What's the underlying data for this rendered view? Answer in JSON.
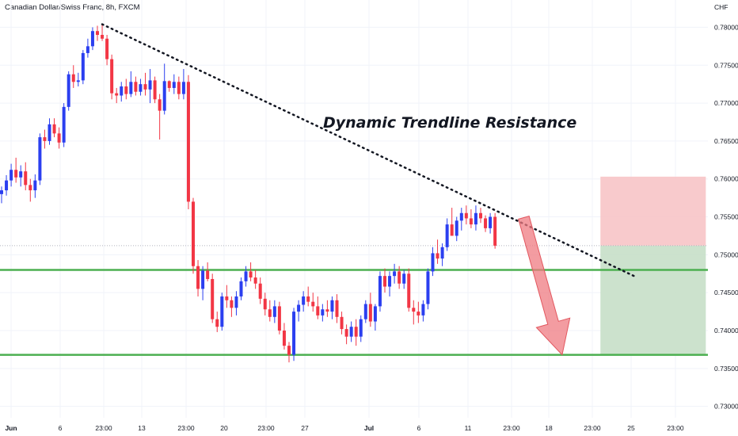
{
  "title": "Canadian Dollar/Swiss Franc, 8h, FXCM",
  "currency": "CHF",
  "annotation": "Dynamic Trendline Resistance",
  "colors": {
    "bull": "#2b3ff0",
    "bear": "#f23645",
    "support": "#4caf50",
    "stop_zone": "#f7c4c6",
    "target_zone": "#c6dfc8",
    "arrow": "#ef7b82"
  },
  "chart_data": {
    "type": "candlestick",
    "x_tick_labels": [
      "Jun",
      "6",
      "23:00",
      "13",
      "23:00",
      "20",
      "23:00",
      "27",
      "Jul",
      "6",
      "11",
      "23:00",
      "18",
      "23:00",
      "25",
      "23:00"
    ],
    "y_tick_labels": [
      "0.78000",
      "0.77500",
      "0.77000",
      "0.76500",
      "0.76000",
      "0.75500",
      "0.75000",
      "0.74500",
      "0.74000",
      "0.73500",
      "0.73000"
    ],
    "ylim": [
      0.7285,
      0.7836
    ],
    "support_levels": [
      0.748,
      0.7368
    ],
    "trendline": {
      "start": {
        "bar": 21,
        "price": 0.7804
      },
      "end": {
        "bar": 132,
        "price": 0.7472
      }
    },
    "position": {
      "entry": 0.7512,
      "stop": 0.7603,
      "target": 0.7368,
      "start_bar": 125,
      "end_bar": 147
    },
    "projection_arrow": {
      "from": {
        "bar": 109,
        "price": 0.7549
      },
      "to": {
        "bar": 117,
        "price": 0.7368
      }
    },
    "candles": [
      [
        0.758,
        0.759,
        0.7568,
        0.7585
      ],
      [
        0.7585,
        0.7605,
        0.7578,
        0.7598
      ],
      [
        0.7598,
        0.762,
        0.759,
        0.7612
      ],
      [
        0.7612,
        0.7628,
        0.7595,
        0.7602
      ],
      [
        0.7602,
        0.7618,
        0.759,
        0.761
      ],
      [
        0.761,
        0.7622,
        0.7585,
        0.7592
      ],
      [
        0.7592,
        0.76,
        0.757,
        0.7585
      ],
      [
        0.7585,
        0.7606,
        0.7575,
        0.7598
      ],
      [
        0.7598,
        0.766,
        0.7592,
        0.7655
      ],
      [
        0.7655,
        0.7665,
        0.764,
        0.765
      ],
      [
        0.765,
        0.768,
        0.7645,
        0.7672
      ],
      [
        0.7672,
        0.768,
        0.7655,
        0.766
      ],
      [
        0.766,
        0.7668,
        0.764,
        0.7648
      ],
      [
        0.7648,
        0.77,
        0.7642,
        0.7695
      ],
      [
        0.7695,
        0.7742,
        0.769,
        0.7738
      ],
      [
        0.7738,
        0.775,
        0.772,
        0.7728
      ],
      [
        0.7728,
        0.774,
        0.7722,
        0.773
      ],
      [
        0.773,
        0.777,
        0.7725,
        0.7766
      ],
      [
        0.7766,
        0.7785,
        0.776,
        0.7775
      ],
      [
        0.7775,
        0.78,
        0.777,
        0.7795
      ],
      [
        0.7795,
        0.7802,
        0.7782,
        0.779
      ],
      [
        0.779,
        0.7805,
        0.7782,
        0.7785
      ],
      [
        0.7785,
        0.779,
        0.775,
        0.7758
      ],
      [
        0.7758,
        0.7764,
        0.7705,
        0.7713
      ],
      [
        0.7713,
        0.772,
        0.77,
        0.771
      ],
      [
        0.771,
        0.7728,
        0.7702,
        0.7722
      ],
      [
        0.7722,
        0.7732,
        0.7705,
        0.7712
      ],
      [
        0.7712,
        0.7742,
        0.7708,
        0.7728
      ],
      [
        0.7728,
        0.7735,
        0.771,
        0.7715
      ],
      [
        0.7715,
        0.7732,
        0.771,
        0.7725
      ],
      [
        0.7725,
        0.774,
        0.771,
        0.7718
      ],
      [
        0.7718,
        0.7745,
        0.77,
        0.773
      ],
      [
        0.773,
        0.7735,
        0.77,
        0.7705
      ],
      [
        0.7705,
        0.7712,
        0.7652,
        0.769
      ],
      [
        0.769,
        0.7752,
        0.7685,
        0.7729
      ],
      [
        0.7729,
        0.773,
        0.7715,
        0.772
      ],
      [
        0.772,
        0.7738,
        0.7712,
        0.7728
      ],
      [
        0.7728,
        0.7735,
        0.7705,
        0.7712
      ],
      [
        0.7712,
        0.7745,
        0.7705,
        0.7728
      ],
      [
        0.7728,
        0.7737,
        0.756,
        0.757
      ],
      [
        0.757,
        0.7575,
        0.7475,
        0.7485
      ],
      [
        0.7485,
        0.7493,
        0.7445,
        0.7455
      ],
      [
        0.7455,
        0.7485,
        0.744,
        0.7479
      ],
      [
        0.7479,
        0.749,
        0.7465,
        0.7468
      ],
      [
        0.7468,
        0.7475,
        0.741,
        0.7415
      ],
      [
        0.7415,
        0.7425,
        0.7398,
        0.7405
      ],
      [
        0.7405,
        0.745,
        0.74,
        0.7445
      ],
      [
        0.7445,
        0.746,
        0.743,
        0.744
      ],
      [
        0.744,
        0.7445,
        0.7418,
        0.743
      ],
      [
        0.743,
        0.7452,
        0.742,
        0.7445
      ],
      [
        0.7445,
        0.747,
        0.744,
        0.7465
      ],
      [
        0.7465,
        0.7485,
        0.7458,
        0.7478
      ],
      [
        0.7478,
        0.749,
        0.7465,
        0.747
      ],
      [
        0.747,
        0.748,
        0.7455,
        0.7462
      ],
      [
        0.7462,
        0.747,
        0.7435,
        0.7442
      ],
      [
        0.7442,
        0.745,
        0.742,
        0.7428
      ],
      [
        0.7428,
        0.744,
        0.7412,
        0.7418
      ],
      [
        0.7418,
        0.744,
        0.741,
        0.7432
      ],
      [
        0.7432,
        0.7438,
        0.7395,
        0.74
      ],
      [
        0.74,
        0.741,
        0.7375,
        0.738
      ],
      [
        0.738,
        0.7385,
        0.7358,
        0.7368
      ],
      [
        0.7368,
        0.743,
        0.736,
        0.7425
      ],
      [
        0.7425,
        0.744,
        0.7412,
        0.7434
      ],
      [
        0.7434,
        0.7452,
        0.7425,
        0.7445
      ],
      [
        0.7445,
        0.7458,
        0.7432,
        0.7438
      ],
      [
        0.7438,
        0.745,
        0.7425,
        0.7432
      ],
      [
        0.7432,
        0.7445,
        0.7415,
        0.742
      ],
      [
        0.742,
        0.7435,
        0.7412,
        0.7428
      ],
      [
        0.7428,
        0.744,
        0.7418,
        0.7425
      ],
      [
        0.7425,
        0.7445,
        0.7415,
        0.744
      ],
      [
        0.744,
        0.7448,
        0.741,
        0.7418
      ],
      [
        0.7418,
        0.7425,
        0.7395,
        0.7402
      ],
      [
        0.7402,
        0.7408,
        0.7382,
        0.7392
      ],
      [
        0.7392,
        0.7412,
        0.7385,
        0.7405
      ],
      [
        0.7405,
        0.7415,
        0.738,
        0.7392
      ],
      [
        0.7392,
        0.742,
        0.7385,
        0.7415
      ],
      [
        0.7415,
        0.744,
        0.741,
        0.7435
      ],
      [
        0.7435,
        0.745,
        0.7405,
        0.7412
      ],
      [
        0.7412,
        0.7435,
        0.74,
        0.7432
      ],
      [
        0.7432,
        0.7478,
        0.7425,
        0.7472
      ],
      [
        0.7472,
        0.7482,
        0.745,
        0.7458
      ],
      [
        0.7458,
        0.7478,
        0.7445,
        0.7472
      ],
      [
        0.7472,
        0.7488,
        0.7462,
        0.7478
      ],
      [
        0.7478,
        0.7485,
        0.7455,
        0.7462
      ],
      [
        0.7462,
        0.748,
        0.7455,
        0.7475
      ],
      [
        0.7475,
        0.7482,
        0.7425,
        0.743
      ],
      [
        0.743,
        0.744,
        0.7408,
        0.7425
      ],
      [
        0.7425,
        0.7438,
        0.741,
        0.742
      ],
      [
        0.742,
        0.744,
        0.7412,
        0.7435
      ],
      [
        0.7435,
        0.7482,
        0.7428,
        0.7478
      ],
      [
        0.7478,
        0.751,
        0.7472,
        0.7502
      ],
      [
        0.7502,
        0.752,
        0.7488,
        0.7495
      ],
      [
        0.7495,
        0.7515,
        0.7485,
        0.751
      ],
      [
        0.751,
        0.7548,
        0.7505,
        0.754
      ],
      [
        0.754,
        0.7562,
        0.753,
        0.7525
      ],
      [
        0.7525,
        0.755,
        0.7518,
        0.7545
      ],
      [
        0.7545,
        0.7562,
        0.7532,
        0.7555
      ],
      [
        0.7555,
        0.7565,
        0.754,
        0.7548
      ],
      [
        0.7548,
        0.756,
        0.7535,
        0.754
      ],
      [
        0.754,
        0.7565,
        0.7532,
        0.7555
      ],
      [
        0.7555,
        0.7562,
        0.7542,
        0.7548
      ],
      [
        0.7548,
        0.7552,
        0.753,
        0.7535
      ],
      [
        0.7535,
        0.7555,
        0.7528,
        0.755
      ],
      [
        0.755,
        0.7555,
        0.7508,
        0.7512
      ]
    ]
  }
}
